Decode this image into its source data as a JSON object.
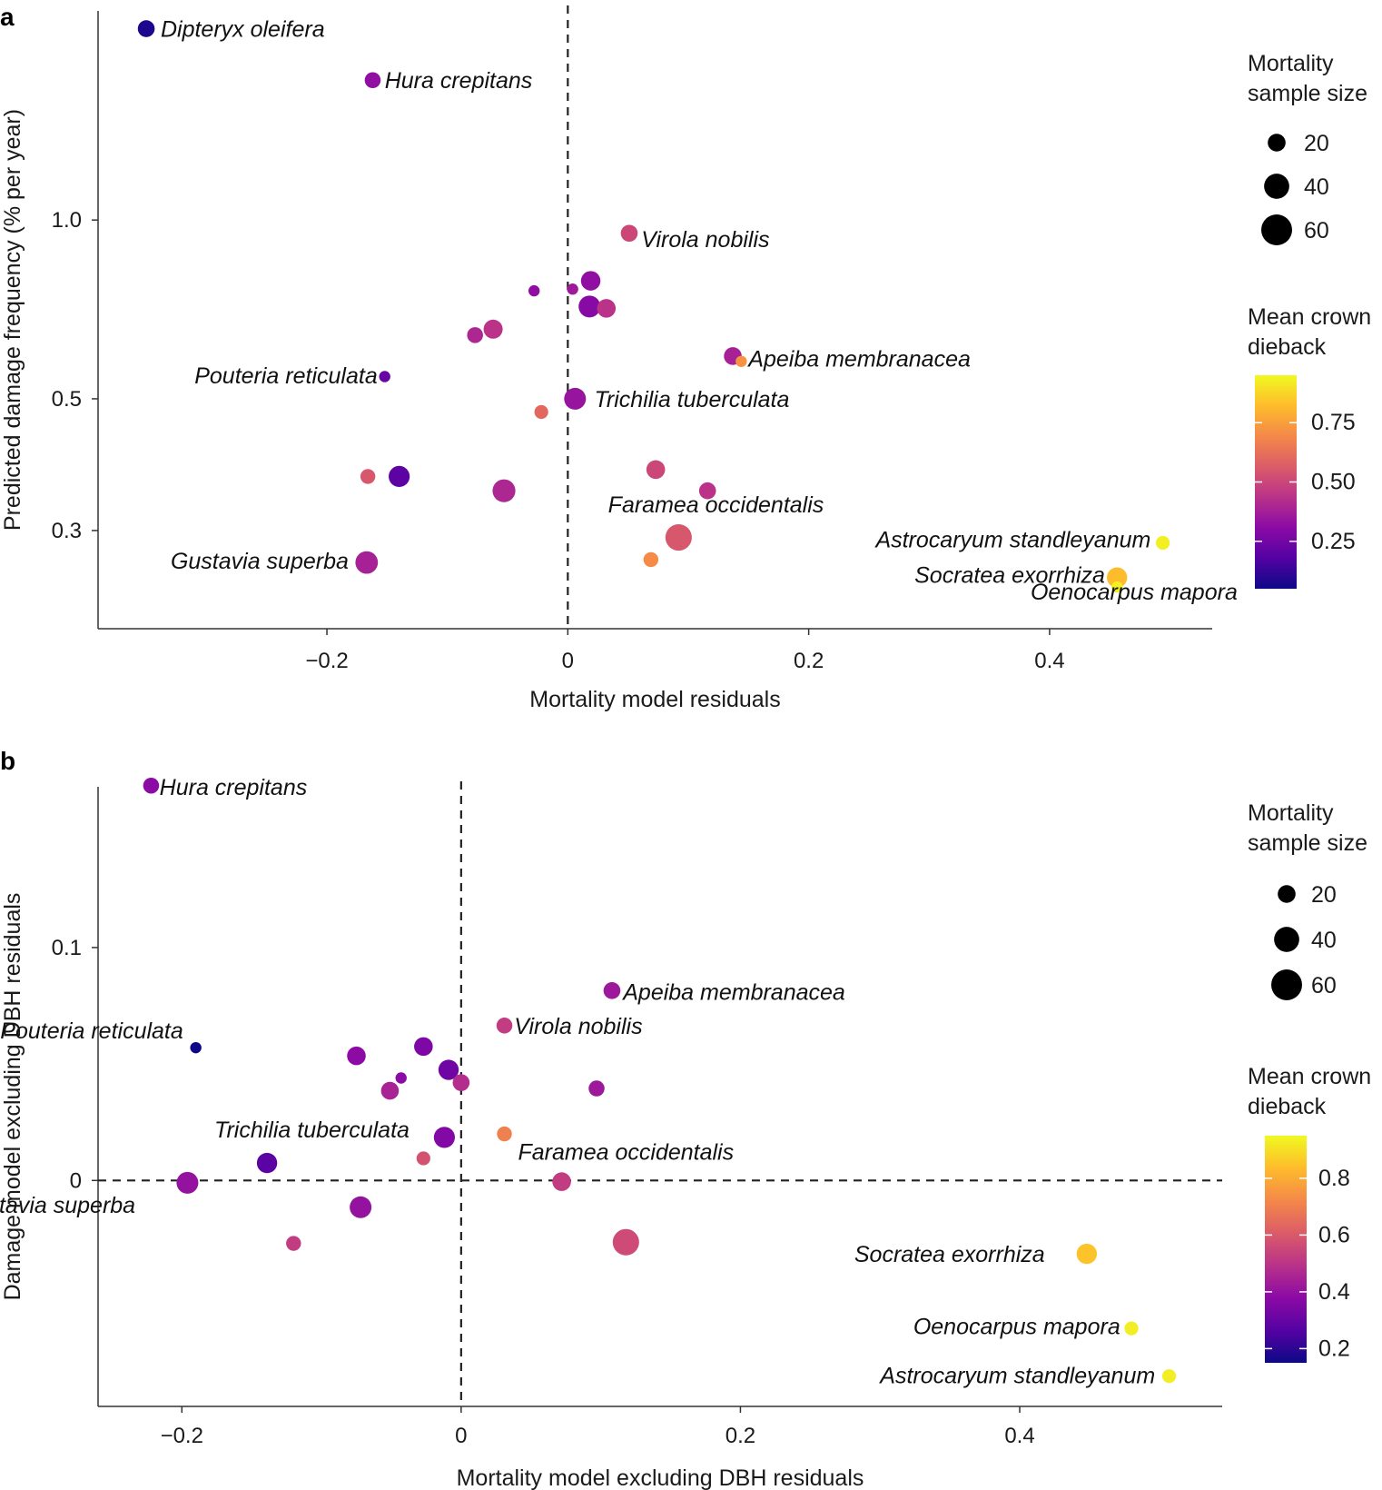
{
  "chart_data": [
    {
      "panel": "a",
      "type": "scatter",
      "xlabel": "Mortality model residuals",
      "ylabel": "Predicted damage frequency (% per year)",
      "y_scale": "log",
      "xlim": [
        -0.39,
        0.535
      ],
      "ylim": [
        0.205,
        2.25
      ],
      "x_ticks": [
        {
          "v": -0.2,
          "label": "−0.2"
        },
        {
          "v": 0,
          "label": "0"
        },
        {
          "v": 0.2,
          "label": "0.2"
        },
        {
          "v": 0.4,
          "label": "0.4"
        }
      ],
      "y_ticks": [
        {
          "v": 0.3,
          "label": "0.3"
        },
        {
          "v": 0.5,
          "label": "0.5"
        },
        {
          "v": 1.0,
          "label": "1.0"
        }
      ],
      "vline_x": 0,
      "points": [
        {
          "x": -0.35,
          "y": 2.1,
          "n": 18,
          "dieback": 0.08,
          "label": "Dipteryx oleifera",
          "lx": 0.012,
          "ly": 2.1,
          "anchor": "start"
        },
        {
          "x": -0.162,
          "y": 1.72,
          "n": 16,
          "dieback": 0.32,
          "label": "Hura crepitans",
          "lx": 0.01,
          "ly": 1.72,
          "anchor": "start"
        },
        {
          "x": 0.051,
          "y": 0.95,
          "n": 18,
          "dieback": 0.5,
          "label": "Virola nobilis",
          "lx": 0.01,
          "ly": 0.93,
          "anchor": "start"
        },
        {
          "x": 0.019,
          "y": 0.79,
          "n": 24,
          "dieback": 0.32,
          "label": "",
          "lx": 0,
          "ly": 0,
          "anchor": "start"
        },
        {
          "x": -0.028,
          "y": 0.76,
          "n": 8,
          "dieback": 0.32,
          "label": "",
          "lx": 0,
          "ly": 0,
          "anchor": "start"
        },
        {
          "x": 0.004,
          "y": 0.765,
          "n": 8,
          "dieback": 0.36,
          "label": "",
          "lx": 0,
          "ly": 0,
          "anchor": "start"
        },
        {
          "x": 0.018,
          "y": 0.715,
          "n": 30,
          "dieback": 0.3,
          "label": "",
          "lx": 0,
          "ly": 0,
          "anchor": "start"
        },
        {
          "x": 0.032,
          "y": 0.71,
          "n": 22,
          "dieback": 0.44,
          "label": "",
          "lx": 0,
          "ly": 0,
          "anchor": "start"
        },
        {
          "x": -0.062,
          "y": 0.655,
          "n": 23,
          "dieback": 0.44,
          "label": "",
          "lx": 0,
          "ly": 0,
          "anchor": "start"
        },
        {
          "x": -0.077,
          "y": 0.64,
          "n": 16,
          "dieback": 0.4,
          "label": "",
          "lx": 0,
          "ly": 0,
          "anchor": "start"
        },
        {
          "x": 0.137,
          "y": 0.59,
          "n": 20,
          "dieback": 0.38,
          "label": "Apeiba membranacea",
          "lx": 0.013,
          "ly": 0.585,
          "anchor": "start"
        },
        {
          "x": 0.144,
          "y": 0.578,
          "n": 8,
          "dieback": 0.72,
          "label": "",
          "lx": 0,
          "ly": 0,
          "anchor": "start"
        },
        {
          "x": -0.152,
          "y": 0.545,
          "n": 8,
          "dieback": 0.22,
          "label": "Pouteria reticulata",
          "lx": -0.006,
          "ly": 0.548,
          "anchor": "end"
        },
        {
          "x": 0.006,
          "y": 0.5,
          "n": 30,
          "dieback": 0.34,
          "label": "Trichilia tuberculata",
          "lx": 0.016,
          "ly": 0.5,
          "anchor": "start"
        },
        {
          "x": -0.022,
          "y": 0.475,
          "n": 12,
          "dieback": 0.6,
          "label": "",
          "lx": 0,
          "ly": 0,
          "anchor": "start"
        },
        {
          "x": 0.073,
          "y": 0.38,
          "n": 22,
          "dieback": 0.5,
          "label": "",
          "lx": 0,
          "ly": 0,
          "anchor": "start"
        },
        {
          "x": -0.166,
          "y": 0.37,
          "n": 14,
          "dieback": 0.55,
          "label": "",
          "lx": 0,
          "ly": 0,
          "anchor": "start"
        },
        {
          "x": -0.14,
          "y": 0.37,
          "n": 28,
          "dieback": 0.2,
          "label": "",
          "lx": 0,
          "ly": 0,
          "anchor": "start"
        },
        {
          "x": -0.053,
          "y": 0.35,
          "n": 33,
          "dieback": 0.4,
          "label": "",
          "lx": 0,
          "ly": 0,
          "anchor": "start"
        },
        {
          "x": 0.116,
          "y": 0.35,
          "n": 18,
          "dieback": 0.44,
          "label": "",
          "lx": 0,
          "ly": 0,
          "anchor": "start"
        },
        {
          "x": 0.092,
          "y": 0.292,
          "n": 44,
          "dieback": 0.55,
          "label": "Faramea occidentalis",
          "lx": 0.031,
          "ly": 0.332,
          "anchor": "middle"
        },
        {
          "x": 0.069,
          "y": 0.268,
          "n": 14,
          "dieback": 0.7,
          "label": "",
          "lx": 0,
          "ly": 0,
          "anchor": "start"
        },
        {
          "x": -0.167,
          "y": 0.265,
          "n": 32,
          "dieback": 0.38,
          "label": "Gustavia superba",
          "lx": -0.015,
          "ly": 0.267,
          "anchor": "end"
        },
        {
          "x": 0.494,
          "y": 0.286,
          "n": 12,
          "dieback": 0.93,
          "label": "Astrocaryum standleyanum",
          "lx": -0.01,
          "ly": 0.29,
          "anchor": "end"
        },
        {
          "x": 0.456,
          "y": 0.25,
          "n": 26,
          "dieback": 0.82,
          "label": "Socratea exorrhiza",
          "lx": -0.01,
          "ly": 0.253,
          "anchor": "end"
        },
        {
          "x": 0.456,
          "y": 0.241,
          "n": 8,
          "dieback": 0.93,
          "label": "Oenocarpus mapora",
          "lx": 0.1,
          "ly": 0.237,
          "anchor": "end"
        }
      ],
      "size_legend": {
        "title_lines": [
          "Mortality",
          "sample size"
        ],
        "values": [
          20,
          40,
          60
        ]
      },
      "color_legend": {
        "title_lines": [
          "Mean crown",
          "dieback"
        ],
        "range": [
          0.05,
          0.95
        ],
        "ticks": [
          {
            "v": 0.25,
            "label": "0.25"
          },
          {
            "v": 0.5,
            "label": "0.50"
          },
          {
            "v": 0.75,
            "label": "0.75"
          }
        ]
      }
    },
    {
      "panel": "b",
      "type": "scatter",
      "xlabel": "Mortality model excluding DBH residuals",
      "ylabel": "Damage model excluding DBH residuals",
      "y_scale": "linear",
      "xlim": [
        -0.26,
        0.545
      ],
      "ylim": [
        -0.097,
        0.169
      ],
      "x_ticks": [
        {
          "v": -0.2,
          "label": "−0.2"
        },
        {
          "v": 0,
          "label": "0"
        },
        {
          "v": 0.2,
          "label": "0.2"
        },
        {
          "v": 0.4,
          "label": "0.4"
        }
      ],
      "y_ticks": [
        {
          "v": 0,
          "label": "0"
        },
        {
          "v": 0.1,
          "label": "0.1"
        }
      ],
      "vline_x": 0,
      "hline_y": 0,
      "points": [
        {
          "x": -0.222,
          "y": 0.1695,
          "n": 16,
          "dieback": 0.38,
          "label": "Hura crepitans",
          "lx": 0.006,
          "ly": 0.169,
          "anchor": "start"
        },
        {
          "x": 0.108,
          "y": 0.0815,
          "n": 18,
          "dieback": 0.42,
          "label": "Apeiba membranacea",
          "lx": 0.008,
          "ly": 0.081,
          "anchor": "start"
        },
        {
          "x": 0.031,
          "y": 0.0665,
          "n": 16,
          "dieback": 0.52,
          "label": "Virola nobilis",
          "lx": 0.007,
          "ly": 0.0665,
          "anchor": "start"
        },
        {
          "x": -0.19,
          "y": 0.057,
          "n": 8,
          "dieback": 0.15,
          "label": "Pouteria reticulata",
          "lx": -0.009,
          "ly": 0.0645,
          "anchor": "end"
        },
        {
          "x": -0.027,
          "y": 0.0575,
          "n": 22,
          "dieback": 0.35,
          "label": "",
          "lx": 0,
          "ly": 0,
          "anchor": "start"
        },
        {
          "x": -0.075,
          "y": 0.0535,
          "n": 22,
          "dieback": 0.38,
          "label": "",
          "lx": 0,
          "ly": 0,
          "anchor": "start"
        },
        {
          "x": -0.009,
          "y": 0.0475,
          "n": 26,
          "dieback": 0.32,
          "label": "",
          "lx": 0,
          "ly": 0,
          "anchor": "start"
        },
        {
          "x": -0.043,
          "y": 0.044,
          "n": 8,
          "dieback": 0.38,
          "label": "",
          "lx": 0,
          "ly": 0,
          "anchor": "start"
        },
        {
          "x": 0.0,
          "y": 0.042,
          "n": 18,
          "dieback": 0.48,
          "label": "",
          "lx": 0,
          "ly": 0,
          "anchor": "start"
        },
        {
          "x": -0.051,
          "y": 0.0385,
          "n": 20,
          "dieback": 0.45,
          "label": "",
          "lx": 0,
          "ly": 0,
          "anchor": "start"
        },
        {
          "x": 0.097,
          "y": 0.0395,
          "n": 16,
          "dieback": 0.42,
          "label": "",
          "lx": 0,
          "ly": 0,
          "anchor": "start"
        },
        {
          "x": -0.012,
          "y": 0.0185,
          "n": 28,
          "dieback": 0.36,
          "label": "Trichilia tuberculata",
          "lx": -0.025,
          "ly": 0.022,
          "anchor": "end"
        },
        {
          "x": 0.031,
          "y": 0.02,
          "n": 14,
          "dieback": 0.7,
          "label": "",
          "lx": 0,
          "ly": 0,
          "anchor": "start"
        },
        {
          "x": -0.139,
          "y": 0.0075,
          "n": 26,
          "dieback": 0.28,
          "label": "",
          "lx": 0,
          "ly": 0,
          "anchor": "start"
        },
        {
          "x": -0.027,
          "y": 0.0095,
          "n": 12,
          "dieback": 0.58,
          "label": "",
          "lx": 0,
          "ly": 0,
          "anchor": "start"
        },
        {
          "x": -0.196,
          "y": -0.001,
          "n": 30,
          "dieback": 0.4,
          "label": "Gustavia superba",
          "lx": -0.101,
          "ly": -0.0105,
          "anchor": "middle"
        },
        {
          "x": 0.072,
          "y": -0.0005,
          "n": 22,
          "dieback": 0.52,
          "label": "",
          "lx": 0,
          "ly": 0,
          "anchor": "start"
        },
        {
          "x": -0.072,
          "y": -0.0115,
          "n": 30,
          "dieback": 0.4,
          "label": "",
          "lx": 0,
          "ly": 0,
          "anchor": "start"
        },
        {
          "x": 0.118,
          "y": -0.0265,
          "n": 44,
          "dieback": 0.56,
          "label": "Faramea occidentalis",
          "lx": 0.0,
          "ly": 0.0125,
          "anchor": "middle"
        },
        {
          "x": -0.12,
          "y": -0.027,
          "n": 14,
          "dieback": 0.52,
          "label": "",
          "lx": 0,
          "ly": 0,
          "anchor": "start"
        },
        {
          "x": 0.448,
          "y": -0.0315,
          "n": 26,
          "dieback": 0.85,
          "label": "Socratea exorrhiza",
          "lx": -0.03,
          "ly": -0.0315,
          "anchor": "end"
        },
        {
          "x": 0.48,
          "y": -0.0635,
          "n": 12,
          "dieback": 0.93,
          "label": "Oenocarpus mapora",
          "lx": -0.008,
          "ly": -0.0625,
          "anchor": "end"
        },
        {
          "x": 0.507,
          "y": -0.084,
          "n": 12,
          "dieback": 0.93,
          "label": "Astrocaryum standleyanum",
          "lx": -0.01,
          "ly": -0.0835,
          "anchor": "end"
        }
      ],
      "size_legend": {
        "title_lines": [
          "Mortality",
          "sample size"
        ],
        "values": [
          20,
          40,
          60
        ]
      },
      "color_legend": {
        "title_lines": [
          "Mean crown",
          "dieback"
        ],
        "range": [
          0.15,
          0.95
        ],
        "ticks": [
          {
            "v": 0.2,
            "label": "0.2"
          },
          {
            "v": 0.4,
            "label": "0.4"
          },
          {
            "v": 0.6,
            "label": "0.6"
          },
          {
            "v": 0.8,
            "label": "0.8"
          }
        ]
      }
    }
  ]
}
